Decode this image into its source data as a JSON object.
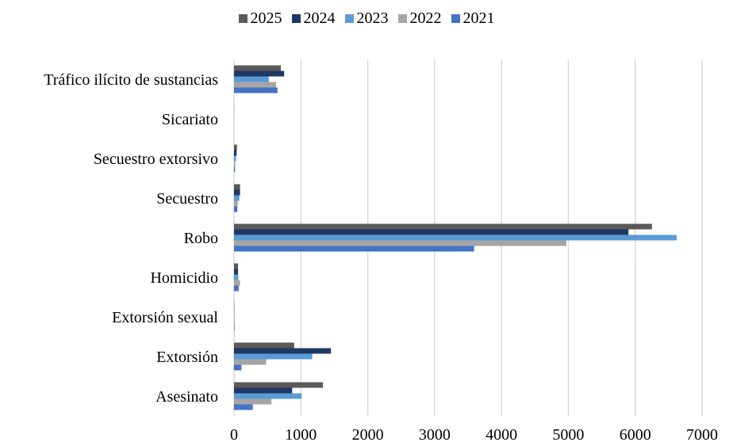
{
  "chart_data": {
    "type": "bar",
    "orientation": "horizontal",
    "title": "",
    "xlabel": "",
    "ylabel": "",
    "categories": [
      "Asesinato",
      "Extorsión",
      "Extorsión sexual",
      "Homicidio",
      "Robo",
      "Secuestro",
      "Secuestro extorsivo",
      "Sicariato",
      "Tráfico ilícito de sustancias"
    ],
    "series": [
      {
        "name": "2025",
        "color": "#595959",
        "values": [
          1330,
          900,
          5,
          60,
          6250,
          90,
          45,
          2,
          700
        ]
      },
      {
        "name": "2024",
        "color": "#203864",
        "values": [
          870,
          1450,
          3,
          60,
          5900,
          90,
          40,
          1,
          750
        ]
      },
      {
        "name": "2023",
        "color": "#5b9bd5",
        "values": [
          1010,
          1170,
          5,
          65,
          6620,
          80,
          30,
          1,
          520
        ]
      },
      {
        "name": "2022",
        "color": "#a5a5a5",
        "values": [
          560,
          480,
          10,
          90,
          4970,
          55,
          20,
          1,
          630
        ]
      },
      {
        "name": "2021",
        "color": "#4472c4",
        "values": [
          280,
          110,
          8,
          70,
          3590,
          50,
          15,
          0,
          650
        ]
      }
    ],
    "xlim": [
      0,
      7000
    ],
    "xticks": [
      "0",
      "1000",
      "2000",
      "3000",
      "4000",
      "5000",
      "6000",
      "7000"
    ],
    "grid": true,
    "legend_position": "top"
  }
}
